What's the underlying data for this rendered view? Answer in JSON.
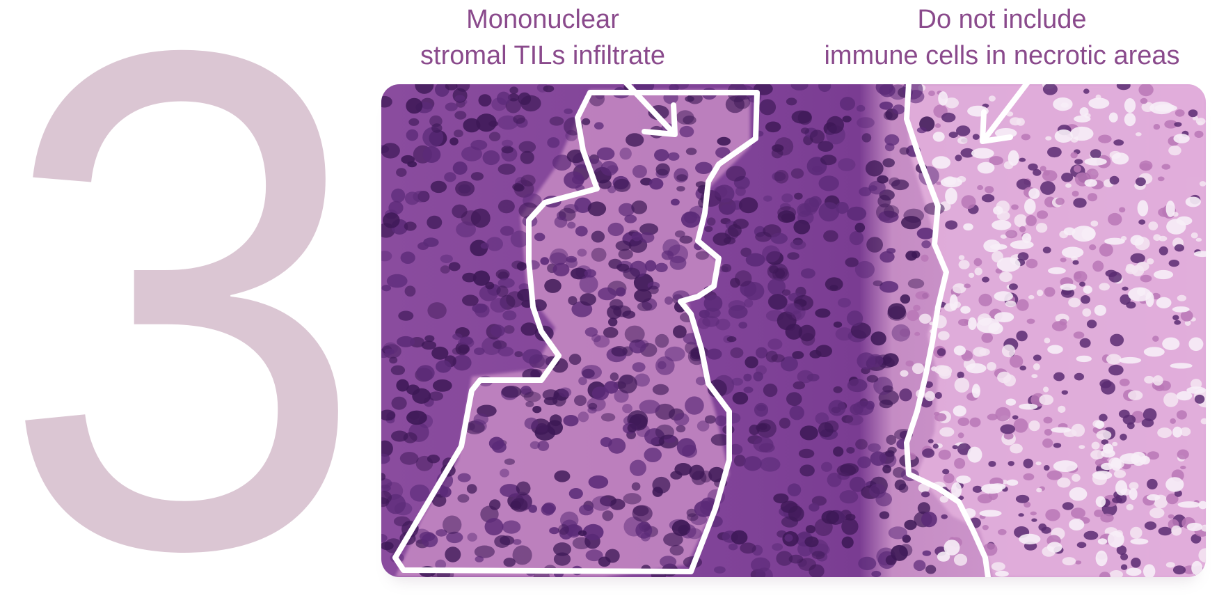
{
  "numeral": "3",
  "captions": {
    "left_line1": "Mononuclear",
    "left_line2": "stromal TILs infiltrate",
    "right_line1": "Do not include",
    "right_line2": "immune cells in necrotic areas"
  },
  "micrograph": {
    "image_name": "histology-micrograph",
    "annotations": [
      "stromal-region-outline",
      "necrotic-boundary-line",
      "left-arrow",
      "right-arrow"
    ]
  },
  "colors": {
    "numeral": "#dbc6d3",
    "caption_text": "#8a4a8c",
    "tissue_background": "#9a5aa8",
    "dark_nuclei": "#3d1856",
    "stroma_pink": "#c98bc6",
    "necrosis_pink": "#e3b2de",
    "annotation_stroke": "#ffffff"
  }
}
